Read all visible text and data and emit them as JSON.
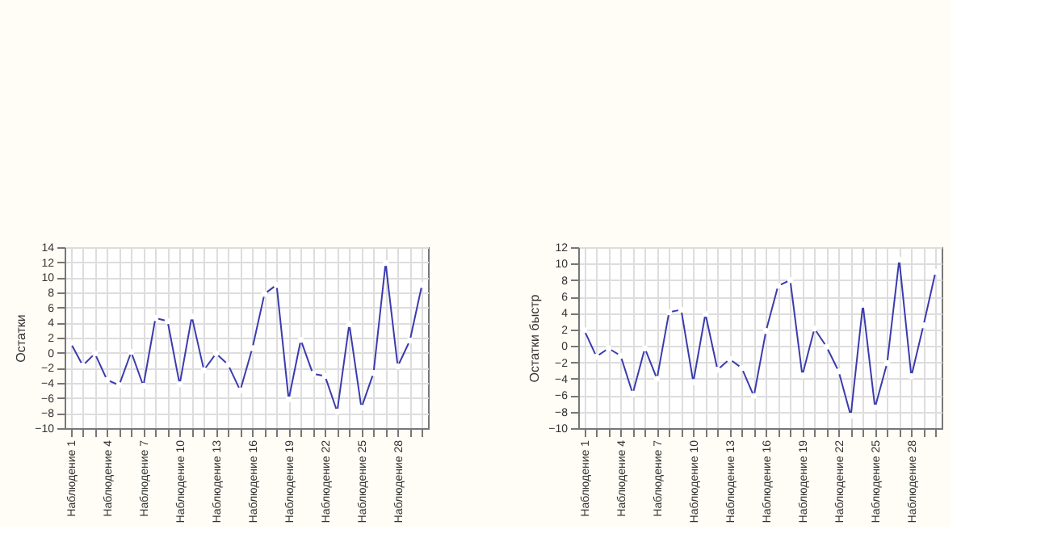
{
  "chart_data": [
    {
      "type": "line",
      "ylabel": "Остатки",
      "categories": [
        "Наблюдение 1",
        null,
        null,
        "Наблюдение 4",
        null,
        null,
        "Наблюдение 7",
        null,
        null,
        "Наблюдение 10",
        null,
        null,
        "Наблюдение 13",
        null,
        null,
        "Наблюдение 16",
        null,
        null,
        "Наблюдение 19",
        null,
        null,
        "Наблюдение 22",
        null,
        null,
        "Наблюдение 25",
        null,
        null,
        "Наблюдение 28",
        null,
        null
      ],
      "series": [
        {
          "color": "#3b3bb0",
          "values": [
            1.3,
            -1.7,
            -0.1,
            -3.6,
            -4.3,
            0.1,
            -4.4,
            4.6,
            4.2,
            -4.2,
            4.8,
            -2.3,
            -0.1,
            -1.6,
            -5.0,
            0.6,
            7.8,
            9.0,
            -6.2,
            1.7,
            -2.8,
            -3.1,
            -7.8,
            3.8,
            -7.3,
            -2.7,
            11.9,
            -1.8,
            1.6,
            9.0
          ]
        }
      ],
      "ylim": [
        -10,
        14
      ],
      "yticks": [
        -10,
        -8,
        -6,
        -4,
        -2,
        0,
        2,
        4,
        6,
        8,
        10,
        12,
        14
      ],
      "grid": true,
      "marker": "circle",
      "line_style": "solid"
    },
    {
      "type": "line",
      "ylabel": "Остатки быстр",
      "categories": [
        "Наблюдение 1",
        null,
        null,
        "Наблюдение 4",
        null,
        null,
        "Наблюдение 7",
        null,
        null,
        "Наблюдение 10",
        null,
        null,
        "Наблюдение 13",
        null,
        null,
        "Наблюдение 16",
        null,
        null,
        "Наблюдение 19",
        null,
        null,
        "Наблюдение 22",
        null,
        null,
        "Наблюдение 25",
        null,
        null,
        "Наблюдение 28",
        null,
        null
      ],
      "series": [
        {
          "color": "#3b3bb0",
          "values": [
            1.9,
            -1.3,
            -0.3,
            -1.2,
            -5.8,
            -0.3,
            -4.0,
            4.1,
            4.4,
            -4.4,
            3.9,
            -2.9,
            -1.6,
            -2.7,
            -6.1,
            1.8,
            7.3,
            8.0,
            -3.6,
            2.1,
            -0.1,
            -3.1,
            -8.5,
            5.0,
            -7.5,
            -2.1,
            10.5,
            -3.7,
            2.5,
            9.0
          ]
        }
      ],
      "ylim": [
        -10,
        12
      ],
      "yticks": [
        -10,
        -8,
        -6,
        -4,
        -2,
        0,
        2,
        4,
        6,
        8,
        10,
        12
      ],
      "grid": true,
      "marker": "circle",
      "line_style": "solid"
    }
  ]
}
